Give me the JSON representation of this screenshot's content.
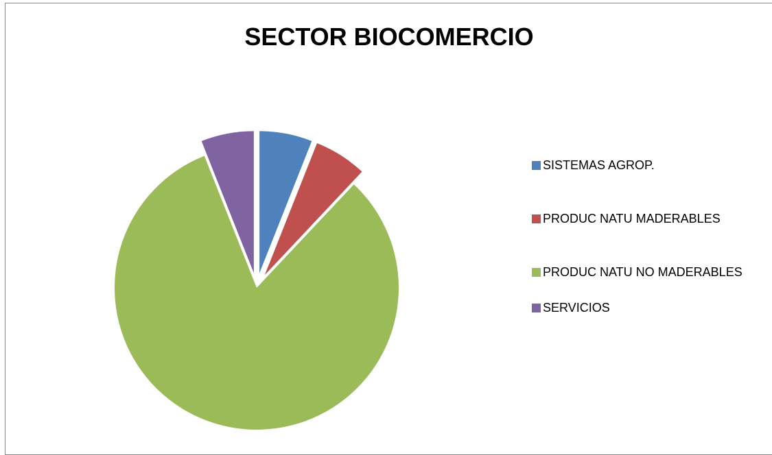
{
  "chart_data": {
    "type": "pie",
    "title": "SECTOR BIOCOMERCIO",
    "categories": [
      "SISTEMAS AGROP.",
      "PRODUC NATU MADERABLES",
      "PRODUC NATU NO MADERABLES",
      "SERVICIOS"
    ],
    "values": [
      6,
      6,
      82,
      6
    ],
    "colors": [
      "#4f81bd",
      "#c0504d",
      "#9bbb59",
      "#8064a2"
    ],
    "exploded": [
      true,
      true,
      false,
      true
    ],
    "legend": "right"
  }
}
